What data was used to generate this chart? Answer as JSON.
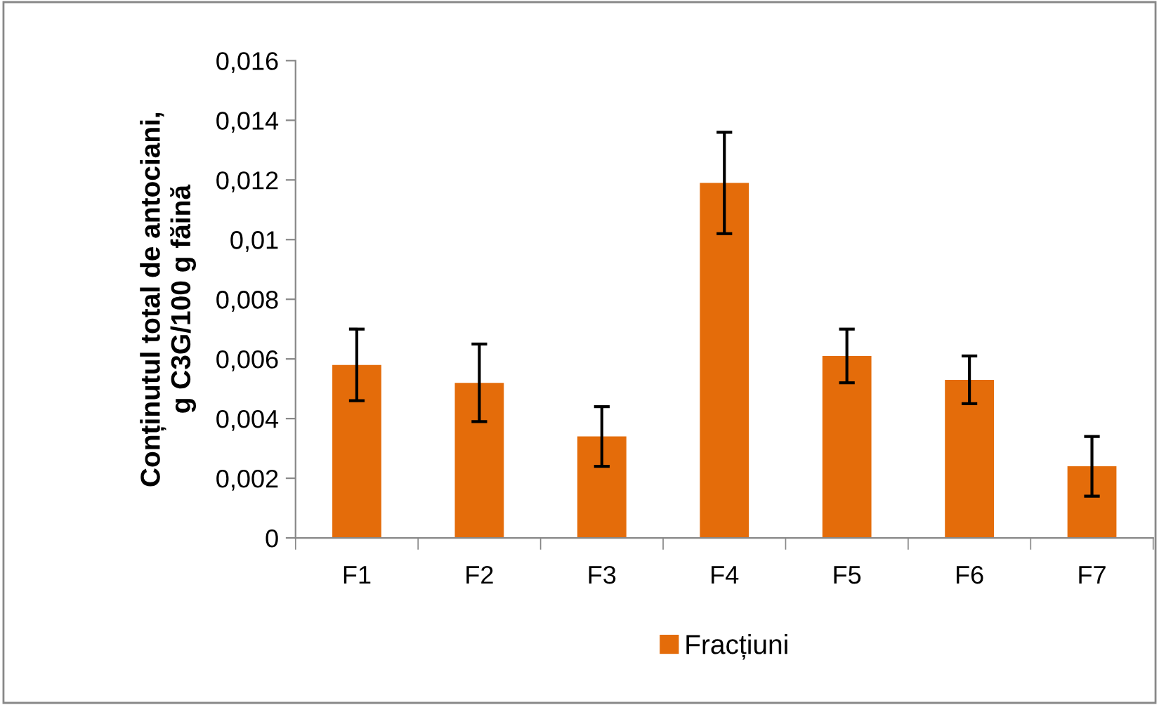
{
  "chart_data": {
    "type": "bar",
    "ylabel": "Conținutul total de antociani,\ng C3G/100 g făină",
    "categories": [
      "F1",
      "F2",
      "F3",
      "F4",
      "F5",
      "F6",
      "F7"
    ],
    "series": [
      {
        "name": "Fracțiuni",
        "color": "#e46c0a",
        "values": [
          0.0058,
          0.0052,
          0.0034,
          0.0119,
          0.0061,
          0.0053,
          0.0024
        ],
        "errors": [
          0.0012,
          0.0013,
          0.001,
          0.0017,
          0.0009,
          0.0008,
          0.001
        ]
      }
    ],
    "ylim": [
      0,
      0.016
    ],
    "yticks": [
      {
        "value": 0,
        "label": "0"
      },
      {
        "value": 0.002,
        "label": "0,002"
      },
      {
        "value": 0.004,
        "label": "0,004"
      },
      {
        "value": 0.006,
        "label": "0,006"
      },
      {
        "value": 0.008,
        "label": "0,008"
      },
      {
        "value": 0.01,
        "label": "0,01"
      },
      {
        "value": 0.012,
        "label": "0,012"
      },
      {
        "value": 0.014,
        "label": "0,014"
      },
      {
        "value": 0.016,
        "label": "0,016"
      }
    ],
    "grid": false,
    "legend": "bottom"
  }
}
